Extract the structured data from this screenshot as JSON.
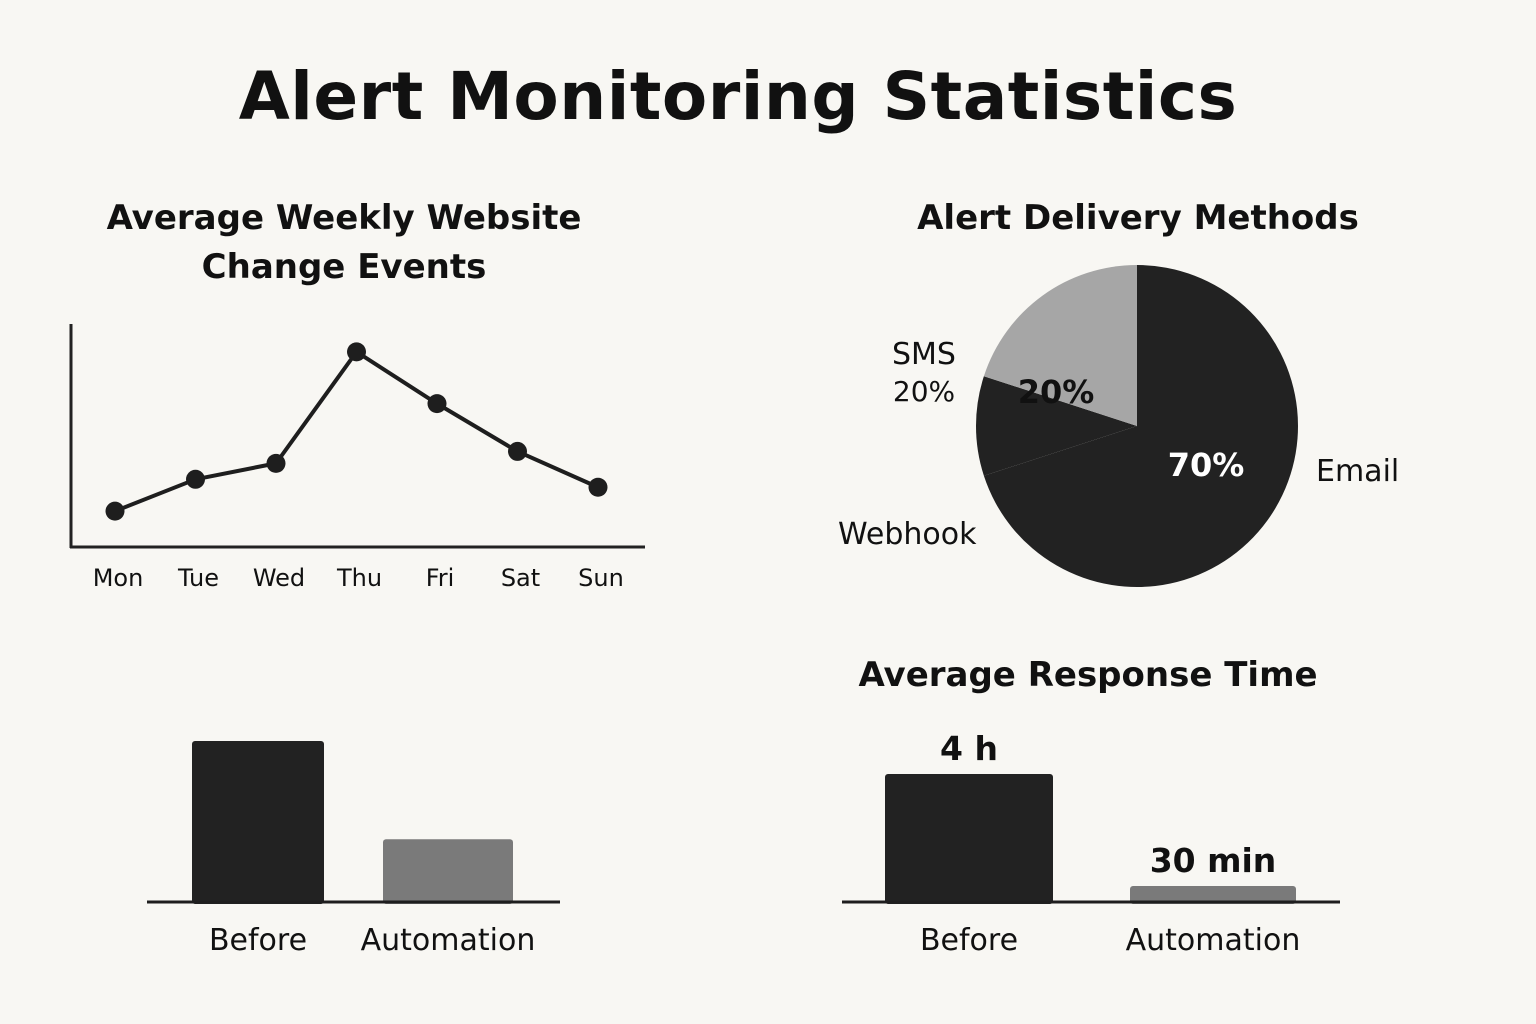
{
  "title": "Alert Monitoring Statistics",
  "colors": {
    "background": "#f8f7f3",
    "dark": "#222222",
    "mid_gray": "#7a7a7a",
    "light_gray": "#a6a6a6",
    "white": "#ffffff"
  },
  "chart_data": [
    {
      "type": "line",
      "title": "Average Weekly Website Change Events",
      "xlabel": "",
      "ylabel": "",
      "categories": [
        "Mon",
        "Tue",
        "Wed",
        "Thu",
        "Fri",
        "Sat",
        "Sun"
      ],
      "values": [
        6,
        14,
        18,
        46,
        33,
        21,
        12
      ],
      "ylim": [
        -3,
        54
      ],
      "grid": false
    },
    {
      "type": "pie",
      "title": "Alert Delivery Methods",
      "slices": [
        {
          "label": "Email",
          "value": 70,
          "value_label": "70%",
          "color": "#222222",
          "text_color": "#ffffff"
        },
        {
          "label": "Webhook",
          "value": 10,
          "value_label": "",
          "color": "#222222",
          "text_color": "#111111"
        },
        {
          "label": "SMS",
          "value": 20,
          "value_label": "20%",
          "color": "#a6a6a6",
          "text_color": "#111111",
          "outside_value": "20%"
        }
      ]
    },
    {
      "type": "bar",
      "title": "",
      "categories": [
        "Before",
        "Automation"
      ],
      "values": [
        100,
        39
      ],
      "colors": [
        "#222222",
        "#7a7a7a"
      ],
      "value_labels": [
        "",
        ""
      ],
      "ylim": [
        0,
        100
      ]
    },
    {
      "type": "bar",
      "title": "Average Response Time",
      "categories": [
        "Before",
        "Automation"
      ],
      "values": [
        240,
        30
      ],
      "colors": [
        "#222222",
        "#7a7a7a"
      ],
      "value_labels": [
        "4 h",
        "30 min"
      ]
    }
  ]
}
